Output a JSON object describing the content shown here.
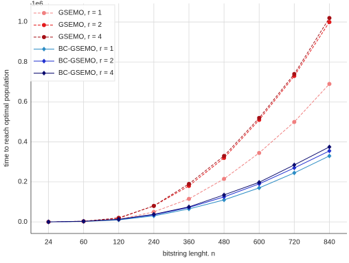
{
  "chart_data": {
    "type": "line",
    "x_label": "bitstring lenght. n",
    "y_label": "time to reach optimal population",
    "y_offset_label": "1e6",
    "categories": [
      "24",
      "60",
      "120",
      "240",
      "360",
      "480",
      "600",
      "720",
      "840"
    ],
    "ylim": [
      -0.058,
      1.093
    ],
    "yticks": [
      {
        "value": 0,
        "label": "0.0"
      },
      0.2,
      0.4,
      0.6,
      0.8,
      {
        "value": 1,
        "label": "1.0"
      }
    ],
    "grid": true,
    "legend": "upper-left",
    "series": [
      {
        "name": "GSEMO, r = 1",
        "color": "#f08080",
        "dashed": true,
        "marker": "circle",
        "values": [
          0,
          0.002,
          0.012,
          0.05,
          0.115,
          0.215,
          0.345,
          0.5,
          0.69
        ]
      },
      {
        "name": "GSEMO, r = 2",
        "color": "#e31a1c",
        "dashed": true,
        "marker": "circle",
        "values": [
          0,
          0.003,
          0.018,
          0.08,
          0.18,
          0.32,
          0.51,
          0.73,
          1.0
        ]
      },
      {
        "name": "GSEMO, r = 4",
        "color": "#a50f15",
        "dashed": true,
        "marker": "circle",
        "values": [
          0,
          0.003,
          0.02,
          0.08,
          0.19,
          0.33,
          0.52,
          0.74,
          1.02
        ]
      },
      {
        "name": "BC-GSEMO, r = 1",
        "color": "#2b8cc4",
        "dashed": false,
        "marker": "diamond",
        "values": [
          0,
          0.002,
          0.01,
          0.03,
          0.065,
          0.11,
          0.17,
          0.245,
          0.33
        ]
      },
      {
        "name": "BC-GSEMO, r = 2",
        "color": "#1f2fcf",
        "dashed": false,
        "marker": "diamond",
        "values": [
          0,
          0.003,
          0.012,
          0.035,
          0.072,
          0.125,
          0.19,
          0.27,
          0.355
        ]
      },
      {
        "name": "BC-GSEMO, r = 4",
        "color": "#0a0a6e",
        "dashed": false,
        "marker": "diamond",
        "values": [
          0,
          0.003,
          0.013,
          0.038,
          0.075,
          0.135,
          0.198,
          0.285,
          0.375
        ]
      }
    ]
  }
}
